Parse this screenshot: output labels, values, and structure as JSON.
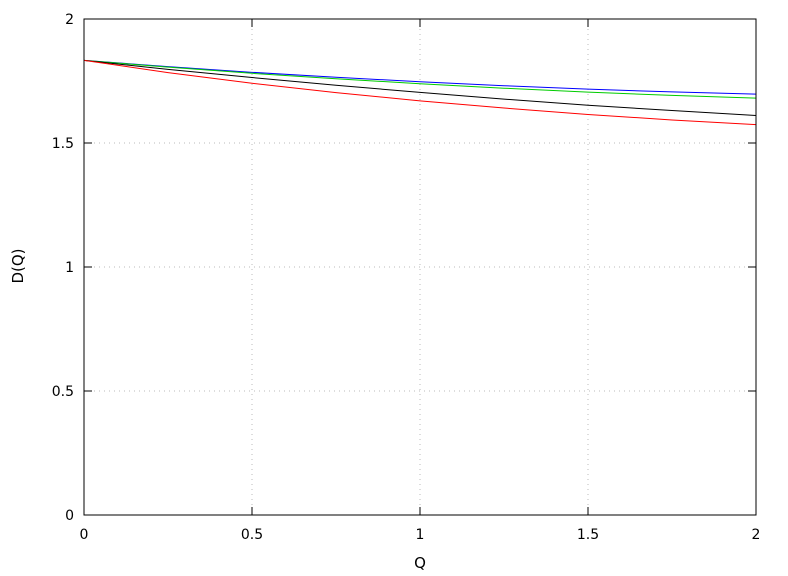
{
  "chart_data": {
    "type": "line",
    "xlabel": "Q",
    "ylabel": "D(Q)",
    "xlim": [
      0,
      2
    ],
    "ylim": [
      0,
      2
    ],
    "xticks": [
      0,
      0.5,
      1,
      1.5,
      2
    ],
    "yticks": [
      0,
      0.5,
      1,
      1.5,
      2
    ],
    "xtick_labels": [
      "0",
      "0.5",
      "1",
      "1.5",
      "2"
    ],
    "ytick_labels": [
      "0",
      "0.5",
      "1",
      "1.5",
      "2"
    ],
    "grid": true,
    "legend": "none",
    "x": [
      0,
      0.25,
      0.5,
      0.75,
      1,
      1.25,
      1.5,
      1.75,
      2
    ],
    "series": [
      {
        "color": "#0000ff",
        "values": [
          1.833,
          1.808,
          1.785,
          1.765,
          1.747,
          1.731,
          1.717,
          1.706,
          1.697
        ]
      },
      {
        "color": "#00cc00",
        "values": [
          1.833,
          1.806,
          1.781,
          1.759,
          1.739,
          1.721,
          1.705,
          1.692,
          1.681
        ]
      },
      {
        "color": "#000000",
        "values": [
          1.833,
          1.797,
          1.764,
          1.733,
          1.704,
          1.677,
          1.652,
          1.631,
          1.611
        ]
      },
      {
        "color": "#ff0000",
        "values": [
          1.833,
          1.784,
          1.741,
          1.703,
          1.67,
          1.641,
          1.615,
          1.593,
          1.574
        ]
      }
    ]
  }
}
